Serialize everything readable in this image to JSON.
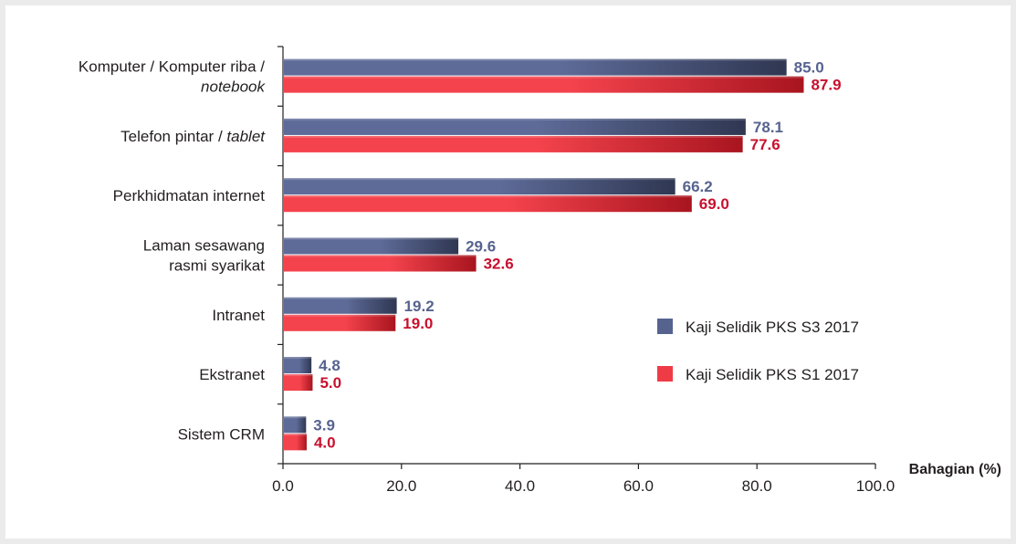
{
  "chart_data": {
    "type": "bar",
    "orientation": "horizontal",
    "categories": [
      {
        "line1": "Komputer / Komputer riba /",
        "line2": "notebook",
        "line2_italic": true
      },
      {
        "line1": "Telefon pintar / ",
        "line1_italic_suffix": "tablet"
      },
      {
        "line1": "Perkhidmatan internet"
      },
      {
        "line1": "Laman sesawang",
        "line2": "rasmi syarikat"
      },
      {
        "line1": "Intranet"
      },
      {
        "line1": "Ekstranet"
      },
      {
        "line1": "Sistem CRM"
      }
    ],
    "series": [
      {
        "name": "Kaji Selidik PKS S3 2017",
        "color": "#56638f",
        "label_color": "#56638f",
        "values": [
          85.0,
          78.1,
          66.2,
          29.6,
          19.2,
          4.8,
          3.9
        ]
      },
      {
        "name": "Kaji Selidik PKS S1 2017",
        "color": "#ef3b46",
        "label_color": "#c8102e",
        "values": [
          87.9,
          77.6,
          69.0,
          32.6,
          19.0,
          5.0,
          4.0
        ]
      }
    ],
    "xlabel": "Bahagian (%)",
    "xlim": [
      0,
      100
    ],
    "xticks": [
      "0.0",
      "20.0",
      "40.0",
      "60.0",
      "80.0",
      "100.0"
    ],
    "legend_position": "right"
  }
}
